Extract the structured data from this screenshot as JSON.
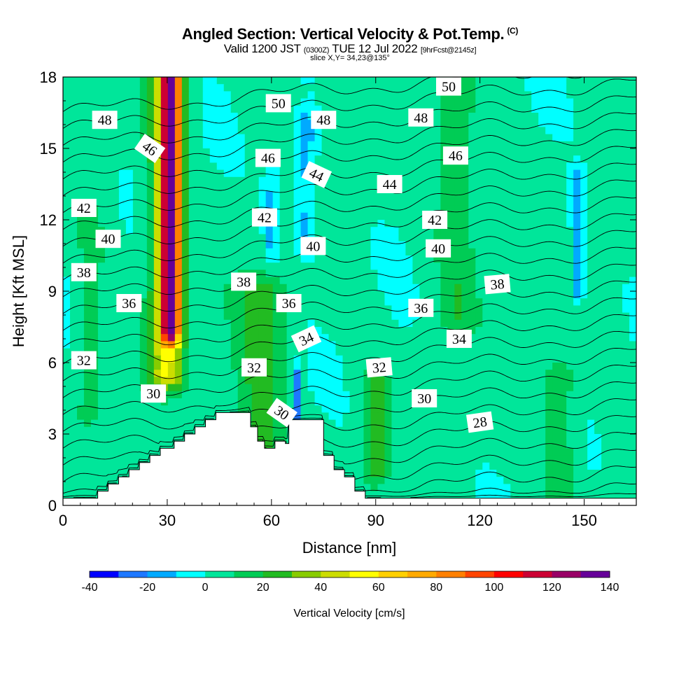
{
  "chart_data": {
    "type": "heatmap",
    "title": "Angled Section: Vertical Velocity & Pot.Temp.",
    "title_mark": "(C)",
    "subtitle": {
      "valid": "Valid 1200 JST",
      "utc": "(0300Z)",
      "date": "TUE 12 Jul 2022",
      "forecast": "[9hrFcst@2145z]"
    },
    "slice_info": "slice X,Y= 34,23@135°",
    "xlabel": "Distance [nm]",
    "ylabel": "Height [Kft MSL]",
    "xlim": [
      0,
      165
    ],
    "ylim": [
      0,
      18
    ],
    "xticks": [
      0,
      30,
      60,
      90,
      120,
      150
    ],
    "yticks": [
      0,
      3,
      6,
      9,
      12,
      15,
      18
    ],
    "xtick_labels": [
      "0",
      "30",
      "60",
      "90",
      "120",
      "150"
    ],
    "ytick_labels": [
      "0",
      "3",
      "6",
      "9",
      "12",
      "15",
      "18"
    ],
    "colorbar": {
      "title": "Vertical Velocity [cm/s]",
      "min": -40,
      "max": 140,
      "step": 10,
      "tick_values": [
        -40,
        -20,
        0,
        20,
        40,
        60,
        80,
        100,
        120,
        140
      ],
      "tick_labels": [
        "-40",
        "-20",
        "0",
        "20",
        "40",
        "60",
        "80",
        "100",
        "120",
        "140"
      ],
      "colors": [
        "#0000ff",
        "#1e78ff",
        "#00aaff",
        "#00ffff",
        "#00e69a",
        "#00cc55",
        "#22bb22",
        "#88cc00",
        "#ccdd00",
        "#ffff00",
        "#ffd000",
        "#ffaa00",
        "#ff8000",
        "#ff4400",
        "#ff0000",
        "#cc0033",
        "#990066",
        "#660099"
      ]
    },
    "terrain": {
      "x": [
        0,
        10,
        10,
        13,
        13,
        16,
        16,
        19,
        19,
        22,
        22,
        25,
        25,
        28,
        28,
        32,
        32,
        35,
        35,
        38,
        38,
        41,
        41,
        44,
        44,
        47,
        47,
        54,
        54,
        56,
        56,
        58,
        58,
        61,
        61,
        64,
        64,
        65,
        65,
        67,
        67,
        75,
        75,
        78,
        78,
        81,
        81,
        84,
        84,
        87,
        87,
        165
      ],
      "y": [
        0.3,
        0.3,
        0.6,
        0.6,
        0.9,
        0.9,
        1.2,
        1.2,
        1.5,
        1.5,
        1.8,
        1.8,
        2.1,
        2.1,
        2.4,
        2.4,
        2.7,
        2.7,
        3.0,
        3.0,
        3.3,
        3.3,
        3.6,
        3.6,
        3.9,
        3.9,
        3.9,
        3.9,
        3.3,
        3.3,
        2.7,
        2.7,
        2.4,
        2.4,
        2.7,
        2.7,
        2.6,
        2.6,
        3.6,
        3.6,
        3.6,
        3.6,
        2.1,
        2.1,
        1.5,
        1.5,
        1.2,
        1.2,
        0.6,
        0.6,
        0.3,
        0.3
      ]
    },
    "vertical_velocity_features": [
      {
        "name": "updraft-core",
        "x_center": 31,
        "x_halfwidth": 2.5,
        "y_bottom": 7.5,
        "y_top": 18,
        "peak": 115
      },
      {
        "name": "updraft-envelope",
        "x_center": 30,
        "x_halfwidth": 5,
        "y_bottom": 5.5,
        "y_top": 18,
        "peak": 45
      },
      {
        "name": "updraft-mid",
        "x_center": 57,
        "x_halfwidth": 7,
        "y_bottom": 2.5,
        "y_top": 9,
        "peak": 22
      },
      {
        "name": "updraft-low",
        "x_center": 90,
        "x_halfwidth": 3,
        "y_bottom": 1.5,
        "y_top": 5,
        "peak": 25
      },
      {
        "name": "updraft-band",
        "x_center": 113,
        "x_halfwidth": 6,
        "y_bottom": 8,
        "y_top": 18,
        "peak": 15
      },
      {
        "name": "updraft-right",
        "x_center": 143,
        "x_halfwidth": 5,
        "y_bottom": 0.5,
        "y_top": 5.5,
        "peak": 15
      },
      {
        "name": "updraft-left",
        "x_center": 8,
        "x_halfwidth": 4,
        "y_bottom": 4,
        "y_top": 12,
        "peak": 12
      },
      {
        "name": "downdraft-a",
        "x_center": 70,
        "x_halfwidth": 3,
        "y_bottom": 11,
        "y_top": 16,
        "peak": -18
      },
      {
        "name": "downdraft-b",
        "x_center": 148,
        "x_halfwidth": 2,
        "y_bottom": 9,
        "y_top": 13.5,
        "peak": -18
      },
      {
        "name": "downdraft-c",
        "x_center": 60,
        "x_halfwidth": 2,
        "y_bottom": 11,
        "y_top": 14,
        "peak": -15
      },
      {
        "name": "downdraft-d",
        "x_center": 67,
        "x_halfwidth": 1,
        "y_bottom": 3,
        "y_top": 5.2,
        "peak": -35
      }
    ],
    "potential_temperature": {
      "units": "°C",
      "contour_interval": 1,
      "levels": [
        26,
        27,
        28,
        29,
        30,
        31,
        32,
        33,
        34,
        35,
        36,
        37,
        38,
        39,
        40,
        41,
        42,
        43,
        44,
        45,
        46,
        47,
        48,
        49,
        50,
        51,
        52
      ],
      "labels": [
        {
          "text": "48",
          "x": 12,
          "y": 16.2
        },
        {
          "text": "46",
          "x": 25,
          "y": 15.0,
          "rotate": 35
        },
        {
          "text": "42",
          "x": 6,
          "y": 12.5
        },
        {
          "text": "40",
          "x": 13,
          "y": 11.2
        },
        {
          "text": "38",
          "x": 6,
          "y": 9.8
        },
        {
          "text": "36",
          "x": 19,
          "y": 8.5
        },
        {
          "text": "32",
          "x": 6,
          "y": 6.1
        },
        {
          "text": "30",
          "x": 26,
          "y": 4.7
        },
        {
          "text": "50",
          "x": 62,
          "y": 16.9
        },
        {
          "text": "48",
          "x": 75,
          "y": 16.2
        },
        {
          "text": "46",
          "x": 59,
          "y": 14.6
        },
        {
          "text": "44",
          "x": 73,
          "y": 13.9,
          "rotate": 25
        },
        {
          "text": "42",
          "x": 58,
          "y": 12.1
        },
        {
          "text": "40",
          "x": 72,
          "y": 10.9
        },
        {
          "text": "38",
          "x": 52,
          "y": 9.4
        },
        {
          "text": "36",
          "x": 65,
          "y": 8.5
        },
        {
          "text": "34",
          "x": 70,
          "y": 7.0,
          "rotate": -25
        },
        {
          "text": "32",
          "x": 55,
          "y": 5.8
        },
        {
          "text": "30",
          "x": 63,
          "y": 3.9,
          "rotate": 35
        },
        {
          "text": "50",
          "x": 111,
          "y": 17.6
        },
        {
          "text": "48",
          "x": 103,
          "y": 16.3
        },
        {
          "text": "46",
          "x": 113,
          "y": 14.7
        },
        {
          "text": "44",
          "x": 94,
          "y": 13.5
        },
        {
          "text": "42",
          "x": 107,
          "y": 12.0
        },
        {
          "text": "40",
          "x": 108,
          "y": 10.8
        },
        {
          "text": "38",
          "x": 125,
          "y": 9.3,
          "rotate": -5
        },
        {
          "text": "36",
          "x": 103,
          "y": 8.3
        },
        {
          "text": "34",
          "x": 114,
          "y": 7.0
        },
        {
          "text": "32",
          "x": 91,
          "y": 5.8,
          "rotate": -5
        },
        {
          "text": "30",
          "x": 104,
          "y": 4.5
        },
        {
          "text": "28",
          "x": 120,
          "y": 3.5,
          "rotate": -8
        }
      ]
    }
  }
}
